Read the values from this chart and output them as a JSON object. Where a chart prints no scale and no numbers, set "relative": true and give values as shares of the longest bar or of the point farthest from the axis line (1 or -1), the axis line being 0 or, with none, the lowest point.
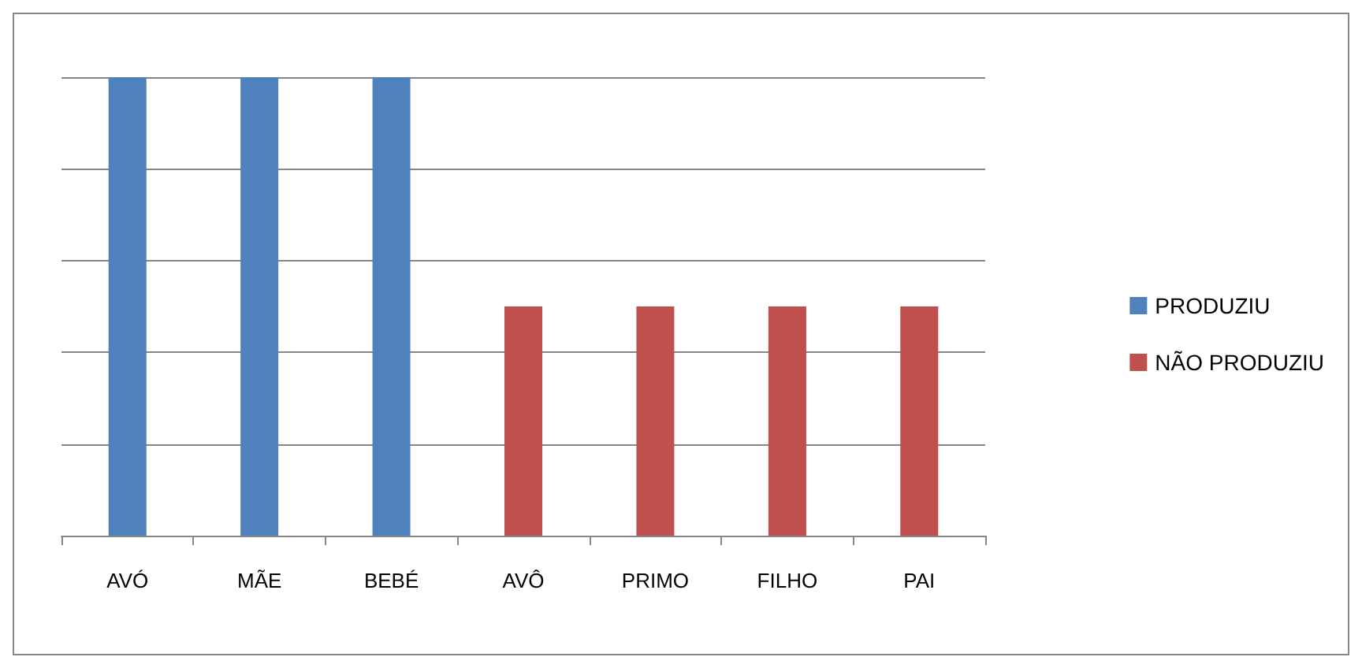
{
  "chart_data": {
    "type": "bar",
    "relative": true,
    "stacked": true,
    "grid": "y",
    "legend": "right",
    "categories": [
      "AVÓ",
      "MÃE",
      "BEBÉ",
      "AVÔ",
      "PRIMO",
      "FILHO",
      "PAI"
    ],
    "series": [
      {
        "name": "PRODUZIU",
        "color": "#4f81bd",
        "values": [
          1,
          1,
          1,
          null,
          null,
          null,
          null
        ]
      },
      {
        "name": "NÃO PRODUZIU",
        "color": "#c0504d",
        "values": [
          null,
          null,
          null,
          0.5,
          0.5,
          0.5,
          0.5
        ]
      }
    ]
  }
}
